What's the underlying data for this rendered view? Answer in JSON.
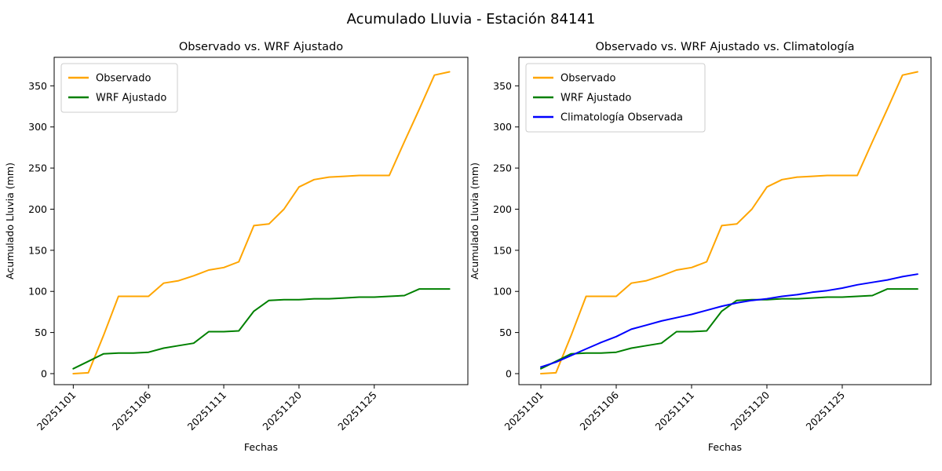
{
  "page": {
    "suptitle": "Acumulado Lluvia - Estación 84141"
  },
  "chart_data": [
    {
      "type": "line",
      "title": "Observado vs. WRF Ajustado",
      "xlabel": "Fechas",
      "ylabel": "Acumulado Lluvia (mm)",
      "n_points": 26,
      "x_tick_positions": [
        0,
        5,
        10,
        15,
        20
      ],
      "x_tick_labels": [
        "20251101",
        "20251106",
        "20251111",
        "20251120",
        "20251125"
      ],
      "y_ticks": [
        0,
        50,
        100,
        150,
        200,
        250,
        300,
        350
      ],
      "xlim": [
        -1.27,
        26.22
      ],
      "ylim": [
        -13.4,
        384.7
      ],
      "grid": false,
      "legend_position": "upper-left",
      "series": [
        {
          "name": "Observado",
          "color": "#FFA500",
          "values": [
            0,
            1,
            46,
            94,
            94,
            94,
            110,
            113,
            119,
            126,
            129,
            136,
            180,
            182,
            200,
            227,
            236,
            239,
            240,
            241,
            241,
            241,
            282,
            322,
            363,
            367
          ]
        },
        {
          "name": "WRF Ajustado",
          "color": "#008000",
          "values": [
            6,
            15,
            24,
            25,
            25,
            26,
            31,
            34,
            37,
            51,
            51,
            52,
            76,
            89,
            90,
            90,
            91,
            91,
            92,
            93,
            93,
            94,
            95,
            103,
            103,
            103
          ]
        }
      ]
    },
    {
      "type": "line",
      "title": "Observado vs. WRF Ajustado vs. Climatología",
      "xlabel": "Fechas",
      "ylabel": "Acumulado Lluvia (mm)",
      "n_points": 26,
      "x_tick_positions": [
        0,
        5,
        10,
        15,
        20
      ],
      "x_tick_labels": [
        "20251101",
        "20251106",
        "20251111",
        "20251120",
        "20251125"
      ],
      "y_ticks": [
        0,
        50,
        100,
        150,
        200,
        250,
        300,
        350
      ],
      "xlim": [
        -1.46,
        25.89
      ],
      "ylim": [
        -13.4,
        384.7
      ],
      "grid": false,
      "legend_position": "upper-left",
      "series": [
        {
          "name": "Observado",
          "color": "#FFA500",
          "values": [
            0,
            1,
            46,
            94,
            94,
            94,
            110,
            113,
            119,
            126,
            129,
            136,
            180,
            182,
            200,
            227,
            236,
            239,
            240,
            241,
            241,
            241,
            282,
            322,
            363,
            367
          ]
        },
        {
          "name": "WRF Ajustado",
          "color": "#008000",
          "values": [
            6,
            15,
            24,
            25,
            25,
            26,
            31,
            34,
            37,
            51,
            51,
            52,
            76,
            89,
            90,
            90,
            91,
            91,
            92,
            93,
            93,
            94,
            95,
            103,
            103,
            103
          ]
        },
        {
          "name": "Climatología Observada",
          "color": "#0000FF",
          "values": [
            8,
            14,
            22,
            30,
            38,
            45,
            54,
            59,
            64,
            68,
            72,
            77,
            82,
            86,
            89,
            91,
            94,
            96,
            99,
            101,
            104,
            108,
            111,
            114,
            118,
            121
          ]
        }
      ]
    }
  ]
}
